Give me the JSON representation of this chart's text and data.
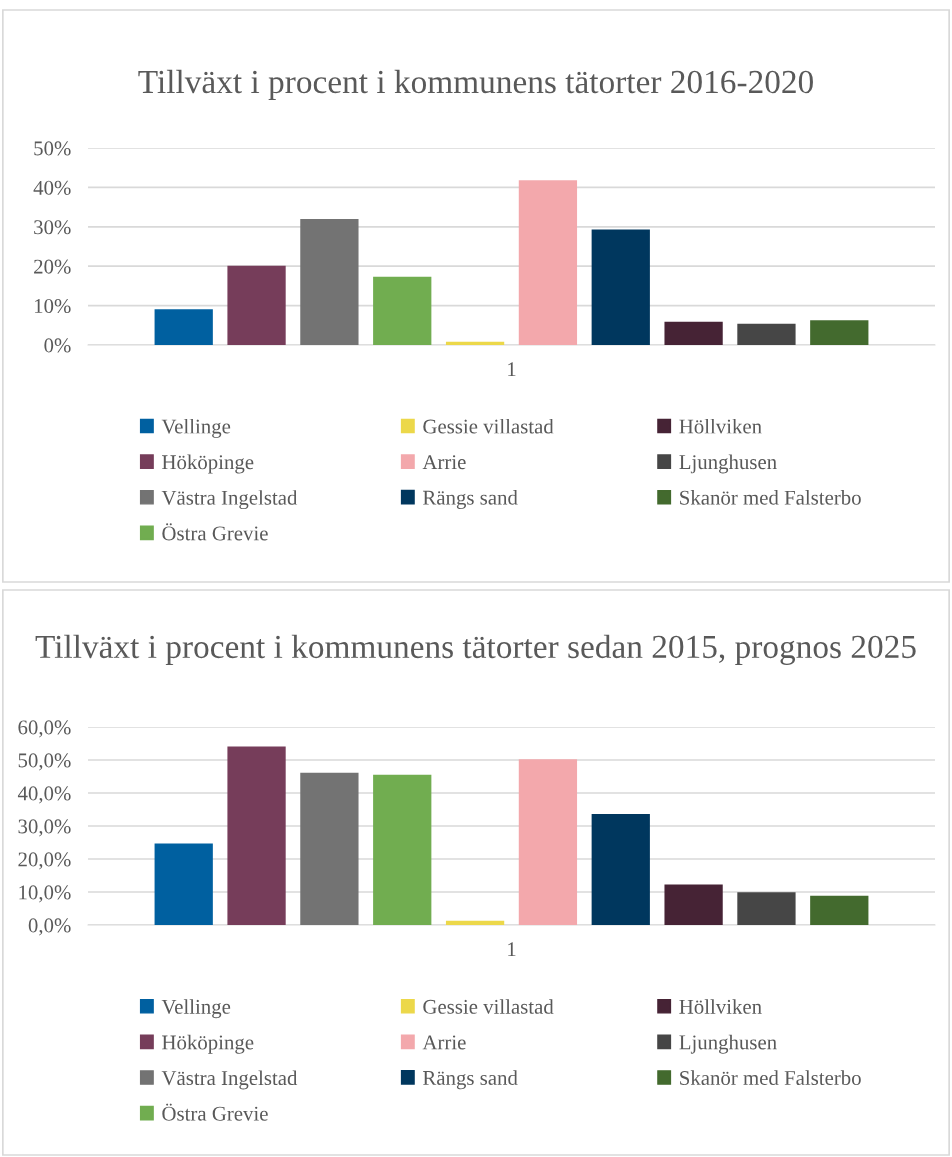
{
  "chart_data": [
    {
      "type": "bar",
      "title": "Tillväxt i procent i kommunens tätorter 2016-2020",
      "categories": [
        "1"
      ],
      "ylim": [
        0,
        50
      ],
      "yticks": [
        {
          "value": 0,
          "label": "0%"
        },
        {
          "value": 10,
          "label": "10%"
        },
        {
          "value": 20,
          "label": "20%"
        },
        {
          "value": 30,
          "label": "30%"
        },
        {
          "value": 40,
          "label": "40%"
        },
        {
          "value": 50,
          "label": "50%"
        }
      ],
      "grid": "y",
      "legend": "bottom",
      "series": [
        {
          "name": "Vellinge",
          "color": "#0060a0",
          "values": [
            9.1
          ]
        },
        {
          "name": "Hököpinge",
          "color": "#763d5a",
          "values": [
            20.1
          ]
        },
        {
          "name": "Västra Ingelstad",
          "color": "#737373",
          "values": [
            32.0
          ]
        },
        {
          "name": "Östra Grevie",
          "color": "#71ad50",
          "values": [
            17.3
          ]
        },
        {
          "name": "Gessie villastad",
          "color": "#ecd84a",
          "values": [
            0.8
          ]
        },
        {
          "name": "Arrie",
          "color": "#f3a8ac",
          "values": [
            41.8
          ]
        },
        {
          "name": "Rängs sand",
          "color": "#00375e",
          "values": [
            29.3
          ]
        },
        {
          "name": "Höllviken",
          "color": "#462335",
          "values": [
            5.9
          ]
        },
        {
          "name": "Ljunghusen",
          "color": "#464646",
          "values": [
            5.4
          ]
        },
        {
          "name": "Skanör med Falsterbo",
          "color": "#436a2e",
          "values": [
            6.3
          ]
        }
      ]
    },
    {
      "type": "bar",
      "title": "Tillväxt i procent i kommunens tätorter sedan 2015, prognos 2025",
      "categories": [
        "1"
      ],
      "ylim": [
        0,
        60
      ],
      "yticks": [
        {
          "value": 0,
          "label": "0,0%"
        },
        {
          "value": 10,
          "label": "10,0%"
        },
        {
          "value": 20,
          "label": "20,0%"
        },
        {
          "value": 30,
          "label": "30,0%"
        },
        {
          "value": 40,
          "label": "40,0%"
        },
        {
          "value": 50,
          "label": "50,0%"
        },
        {
          "value": 60,
          "label": "60,0%"
        }
      ],
      "grid": "y",
      "legend": "bottom",
      "series": [
        {
          "name": "Vellinge",
          "color": "#0060a0",
          "values": [
            24.7
          ]
        },
        {
          "name": "Hököpinge",
          "color": "#763d5a",
          "values": [
            54.1
          ]
        },
        {
          "name": "Västra Ingelstad",
          "color": "#737373",
          "values": [
            46.1
          ]
        },
        {
          "name": "Östra Grevie",
          "color": "#71ad50",
          "values": [
            45.5
          ]
        },
        {
          "name": "Gessie villastad",
          "color": "#ecd84a",
          "values": [
            1.3
          ]
        },
        {
          "name": "Arrie",
          "color": "#f3a8ac",
          "values": [
            50.2
          ]
        },
        {
          "name": "Rängs sand",
          "color": "#00375e",
          "values": [
            33.6
          ]
        },
        {
          "name": "Höllviken",
          "color": "#462335",
          "values": [
            12.3
          ]
        },
        {
          "name": "Ljunghusen",
          "color": "#464646",
          "values": [
            9.9
          ]
        },
        {
          "name": "Skanör med Falsterbo",
          "color": "#436a2e",
          "values": [
            8.9
          ]
        }
      ]
    }
  ]
}
